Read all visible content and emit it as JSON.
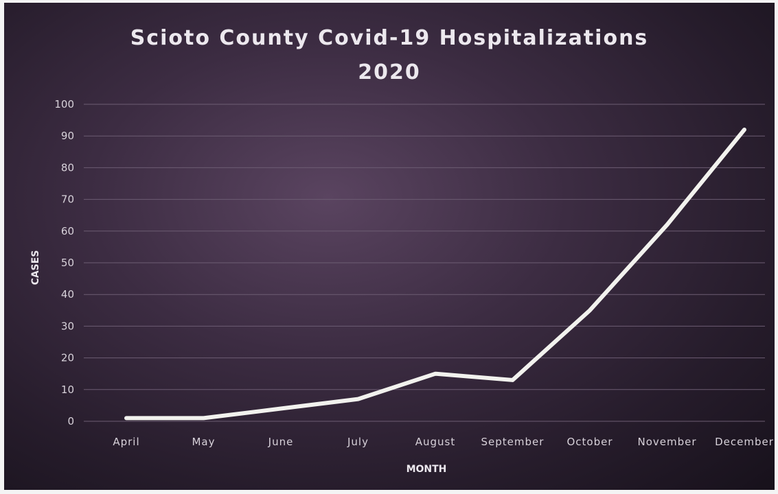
{
  "chart_data": {
    "type": "line",
    "title": "Scioto County Covid-19 Hospitalizations",
    "subtitle": "2020",
    "xlabel": "MONTH",
    "ylabel": "CASES",
    "categories": [
      "April",
      "May",
      "June",
      "July",
      "August",
      "September",
      "October",
      "November",
      "December"
    ],
    "series": [
      {
        "values": [
          1,
          1,
          4,
          7,
          15,
          13,
          35,
          62,
          92
        ]
      }
    ],
    "ylim": [
      0,
      100
    ],
    "yticks": [
      0,
      10,
      20,
      30,
      40,
      50,
      60,
      70,
      80,
      90,
      100
    ],
    "grid": true,
    "legend": "none",
    "colors": {
      "line": "#f2f2ee",
      "background": "#3c2c42",
      "grid": "#6d5d73"
    }
  }
}
